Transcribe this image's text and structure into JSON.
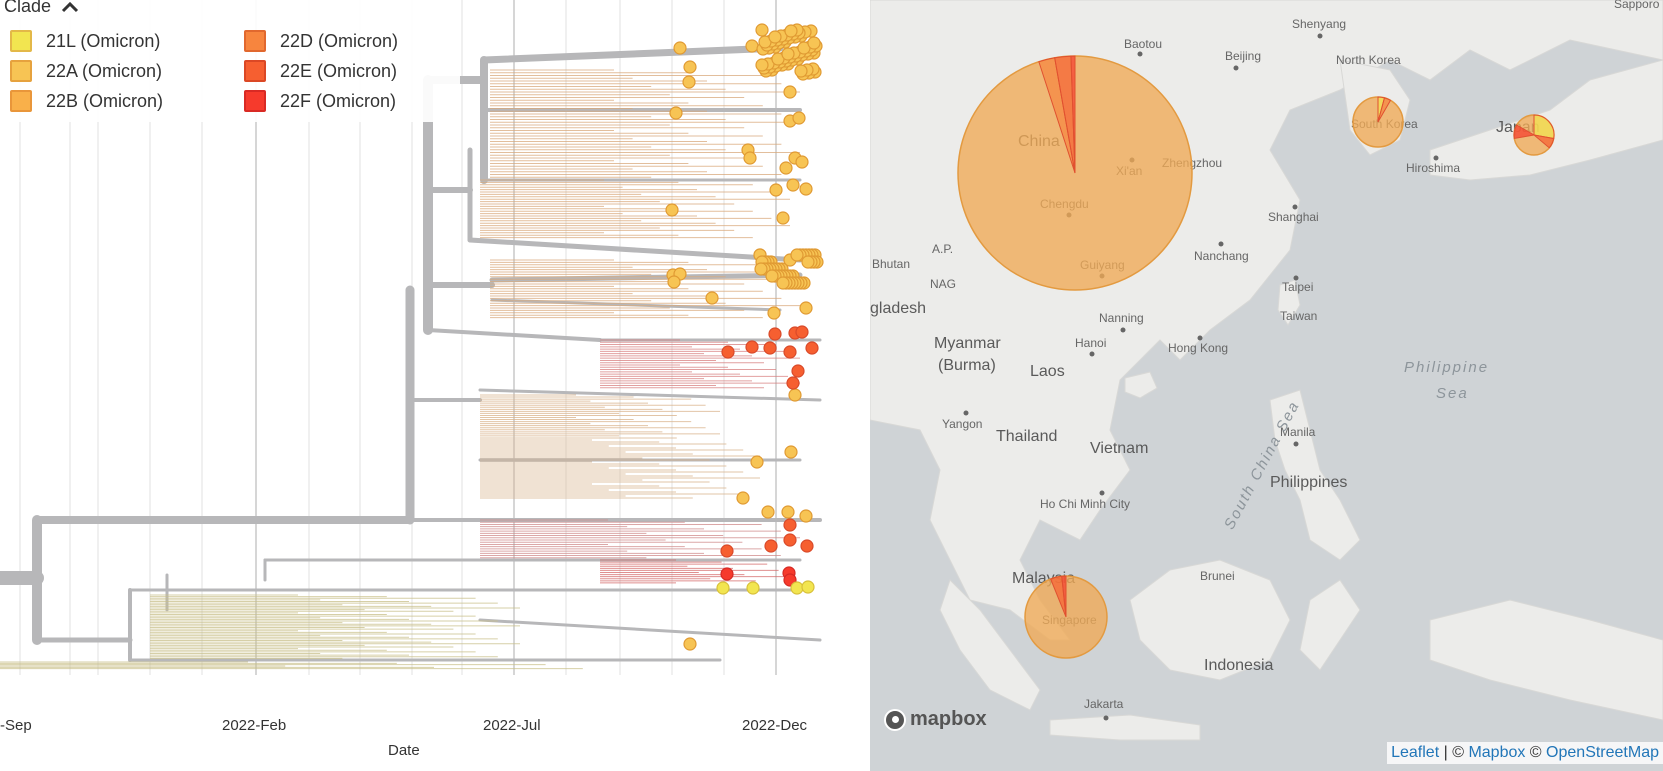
{
  "legend": {
    "title": "Clade",
    "items": [
      {
        "label": "21L (Omicron)",
        "color": "#f2e550",
        "border": "#e3b848"
      },
      {
        "label": "22A (Omicron)",
        "color": "#f7c454",
        "border": "#e6a23e"
      },
      {
        "label": "22B (Omicron)",
        "color": "#f9b04a",
        "border": "#e9963a"
      },
      {
        "label": "22D (Omicron)",
        "color": "#f7853e",
        "border": "#e1682e"
      },
      {
        "label": "22E (Omicron)",
        "color": "#f65f30",
        "border": "#db4825"
      },
      {
        "label": "22F (Omicron)",
        "color": "#f63a2c",
        "border": "#d92a24"
      }
    ]
  },
  "axis": {
    "title": "Date",
    "ticks": [
      "-Sep",
      "2022-Feb",
      "2022-Jul",
      "2022-Dec"
    ]
  },
  "map": {
    "cities": [
      "Shenyang",
      "Baotou",
      "Beijing",
      "North Korea",
      "Sapporo",
      "Xi'an",
      "Zhengzhou",
      "Hiroshima",
      "Chengdu",
      "Shanghai",
      "Nanchang",
      "Guiyang",
      "Taipei",
      "Taiwan",
      "Bhutan",
      "Nanning",
      "Hanoi",
      "Hong Kong",
      "Yangon",
      "Ho Chi Minh City",
      "Manila",
      "Brunei",
      "Jakarta",
      "NAG",
      "A.P."
    ],
    "countries": [
      "China",
      "South Korea",
      "Japan",
      "Myanmar",
      "(Burma)",
      "Laos",
      "Thailand",
      "Vietnam",
      "Philippines",
      "Malaysia",
      "Singapore",
      "Indonesia",
      "gladesh"
    ],
    "seas": [
      "Philippine",
      "Sea",
      "South China Sea"
    ],
    "logo": "mapbox",
    "attribution": {
      "leaflet": "Leaflet",
      "sep1": " | © ",
      "mapbox": "Mapbox",
      "sep2": " © ",
      "osm": "OpenStreetMap"
    }
  },
  "colors": {
    "branch": "#b7b7b9",
    "clade_21L": "#f2e550",
    "clade_22A": "#f7c454",
    "clade_22B": "#f9b04a",
    "clade_22D": "#f7853e",
    "clade_22E": "#f65f30",
    "clade_22F": "#f63a2c",
    "pie_fill": "#f0a955"
  }
}
